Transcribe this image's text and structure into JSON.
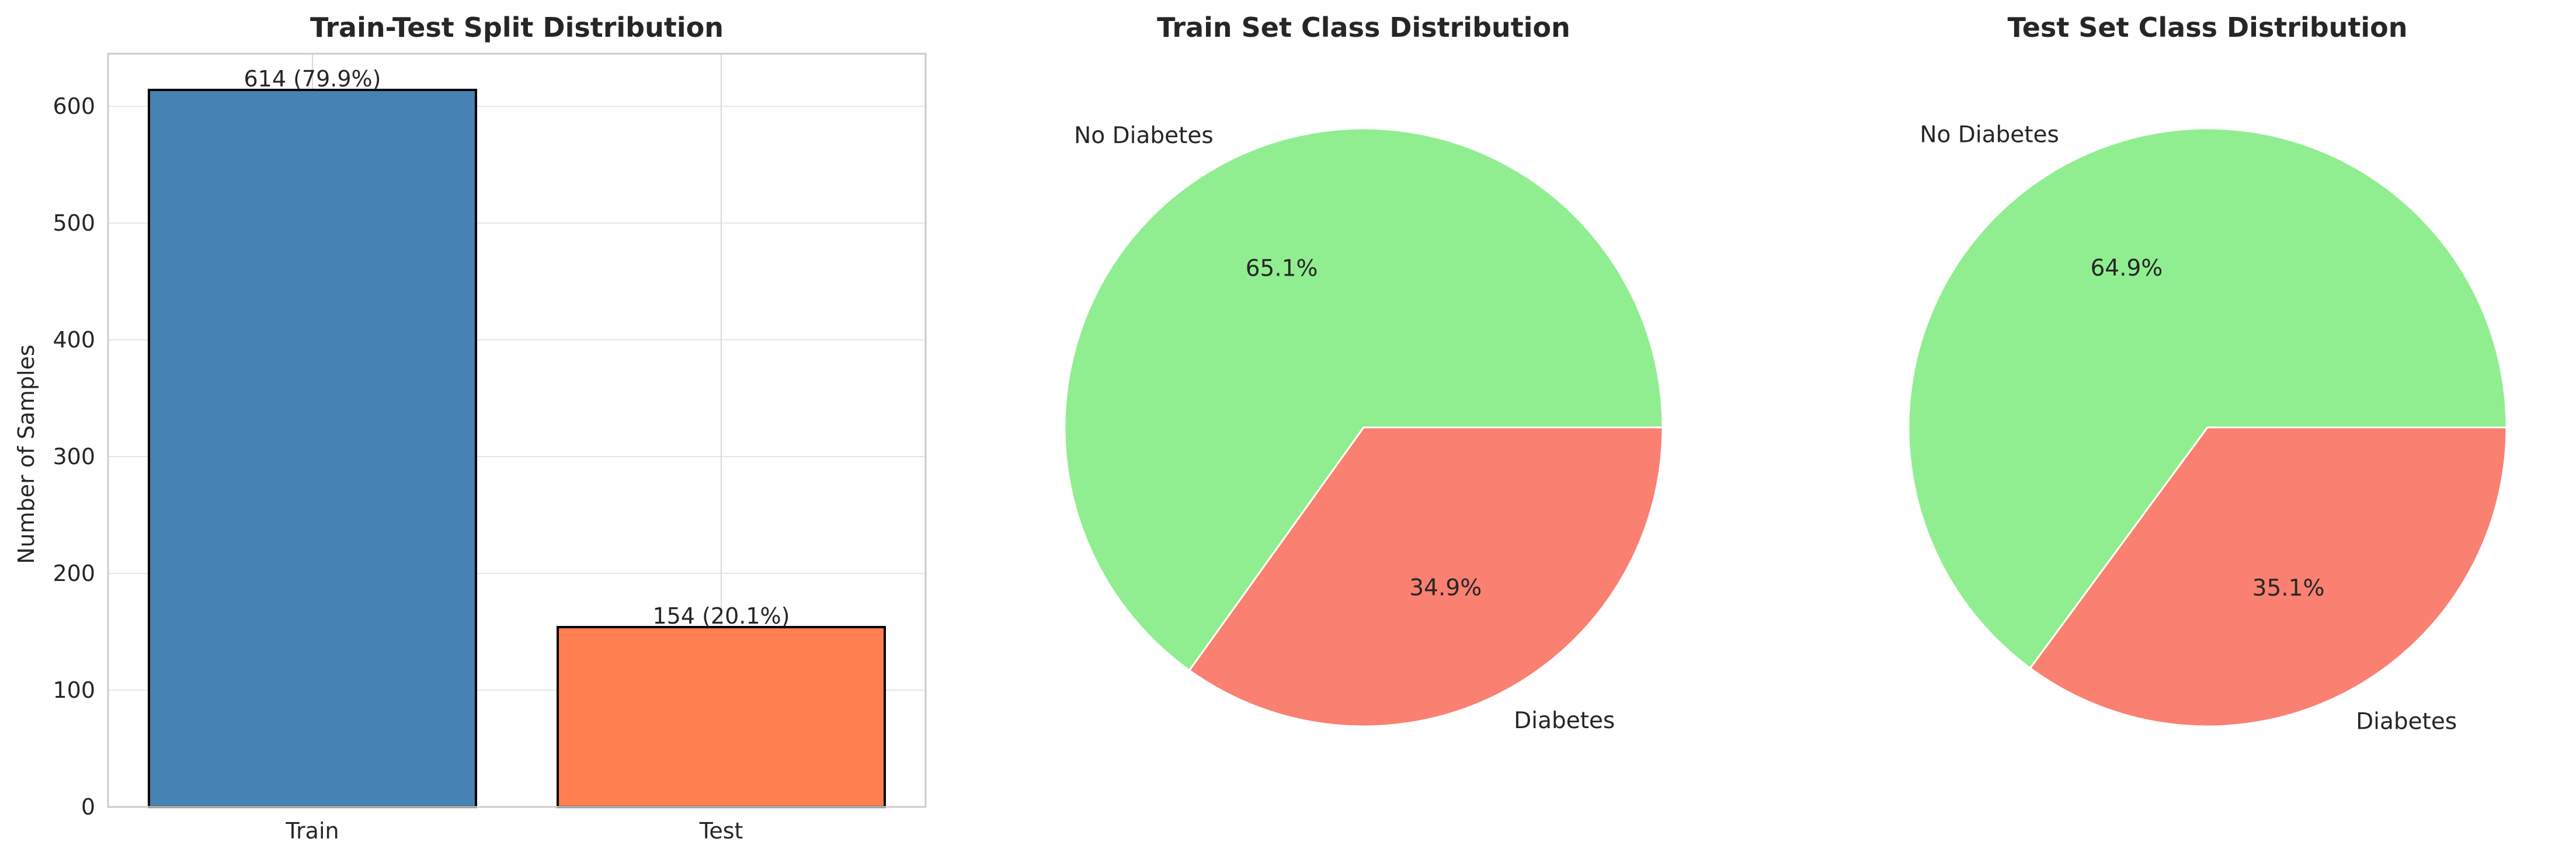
{
  "chart_data": [
    {
      "type": "bar",
      "title": "Train-Test Split Distribution",
      "xlabel": "",
      "ylabel": "Number of Samples",
      "categories": [
        "Train",
        "Test"
      ],
      "values": [
        614,
        154
      ],
      "data_labels": [
        "614 (79.9%)",
        "154 (20.1%)"
      ],
      "colors": [
        "#4682B4",
        "#FF7F50"
      ],
      "edge_color": "#000000",
      "ylim": [
        0,
        645
      ],
      "yticks": [
        0,
        100,
        200,
        300,
        400,
        500,
        600
      ],
      "grid": true
    },
    {
      "type": "pie",
      "title": "Train Set Class Distribution",
      "labels": [
        "No Diabetes",
        "Diabetes"
      ],
      "values": [
        65.1,
        34.9
      ],
      "pct_labels": [
        "65.1%",
        "34.9%"
      ],
      "colors": [
        "#90EE90",
        "#FA8072"
      ]
    },
    {
      "type": "pie",
      "title": "Test Set Class Distribution",
      "labels": [
        "No Diabetes",
        "Diabetes"
      ],
      "values": [
        64.9,
        35.1
      ],
      "pct_labels": [
        "64.9%",
        "35.1%"
      ],
      "colors": [
        "#90EE90",
        "#FA8072"
      ]
    }
  ]
}
